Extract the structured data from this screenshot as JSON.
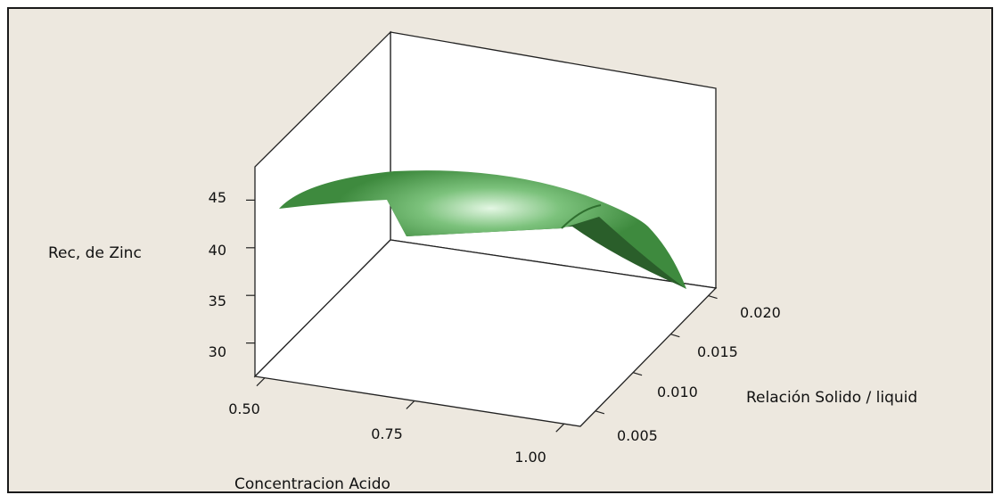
{
  "chart_data": {
    "type": "surface",
    "title": "",
    "zlabel": "Rec, de Zinc",
    "xlabel": "Concentracion Acido",
    "ylabel": "Relación Solido / liquid",
    "x_ticks": [
      "0.50",
      "0.75",
      "1.00"
    ],
    "y_ticks": [
      "0.005",
      "0.010",
      "0.015",
      "0.020"
    ],
    "z_ticks": [
      "30",
      "35",
      "40",
      "45"
    ],
    "xlim": [
      0.5,
      1.0
    ],
    "ylim": [
      0.003,
      0.021
    ],
    "zlim": [
      26.5,
      48.5
    ],
    "surface_color": "#3e8a3e",
    "highlight_color": "#dff5df",
    "surface_edges": {
      "front_edge_x": [
        0.5,
        0.6,
        0.7,
        0.8,
        0.9,
        1.0
      ],
      "front_edge_z": [
        43.7,
        45.1,
        45.8,
        45.6,
        44.5,
        42.5
      ],
      "right_edge_y": [
        0.003,
        0.007,
        0.011,
        0.015,
        0.019,
        0.021
      ],
      "right_edge_z": [
        42.5,
        42.0,
        41.0,
        39.2,
        36.3,
        34.5
      ]
    }
  }
}
